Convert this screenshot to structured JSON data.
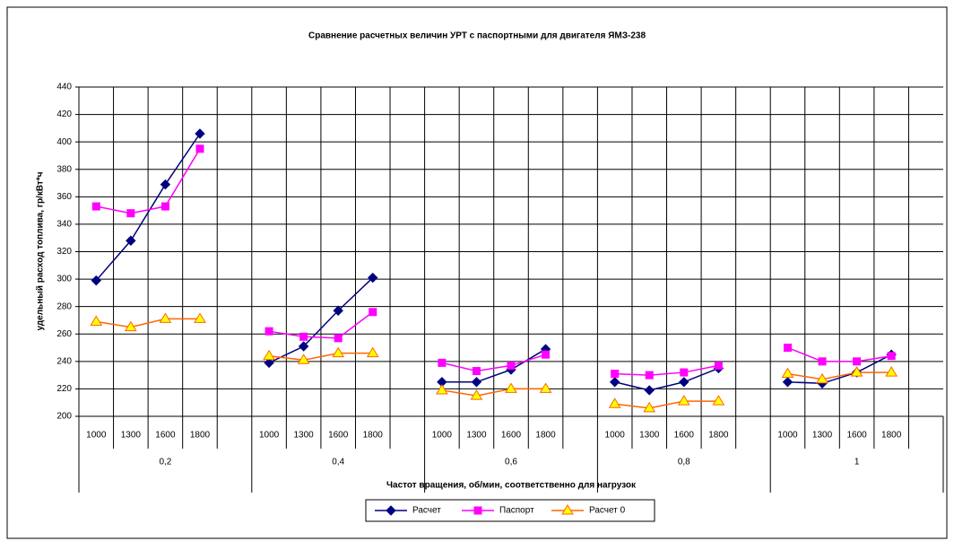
{
  "chart_data": {
    "type": "line",
    "title": "Сравнение расчетных величин УРТ с паспортными для двигателя ЯМЗ-238",
    "y_label": "удельный расход топлива, гр/кВт*ч",
    "x_label": "Частот вращения, об/мин, соответственно для нагрузок",
    "categories": [
      "1000",
      "1300",
      "1600",
      "1800",
      null,
      "1000",
      "1300",
      "1600",
      "1800",
      null,
      "1000",
      "1300",
      "1600",
      "1800",
      null,
      "1000",
      "1300",
      "1600",
      "1800",
      null,
      "1000",
      "1300",
      "1600",
      "1800",
      null
    ],
    "groups": [
      "0,2",
      "0,4",
      "0,6",
      "0,8",
      "1"
    ],
    "ylim": [
      200,
      440
    ],
    "yticks": [
      200,
      220,
      240,
      260,
      280,
      300,
      320,
      340,
      360,
      380,
      400,
      420,
      440
    ],
    "grid": true,
    "legend": "bottom",
    "series": [
      {
        "name": "Расчет",
        "color": "#000080",
        "marker": "diamond",
        "values": [
          299,
          328,
          369,
          406,
          null,
          239,
          251,
          277,
          301,
          null,
          225,
          225,
          234,
          249,
          null,
          225,
          219,
          225,
          235,
          null,
          225,
          224,
          232,
          245,
          null
        ]
      },
      {
        "name": "Паспорт",
        "color": "#ff00ff",
        "marker": "square",
        "values": [
          353,
          348,
          353,
          395,
          null,
          262,
          258,
          257,
          276,
          null,
          239,
          233,
          237,
          245,
          null,
          231,
          230,
          232,
          237,
          null,
          250,
          240,
          240,
          244,
          null
        ]
      },
      {
        "name": "Расчет 0",
        "color": "#ff6600",
        "marker": "triangle",
        "values": [
          269,
          265,
          271,
          271,
          null,
          244,
          241,
          246,
          246,
          null,
          219,
          215,
          220,
          220,
          null,
          209,
          206,
          211,
          211,
          null,
          231,
          227,
          232,
          232,
          null
        ]
      }
    ]
  }
}
